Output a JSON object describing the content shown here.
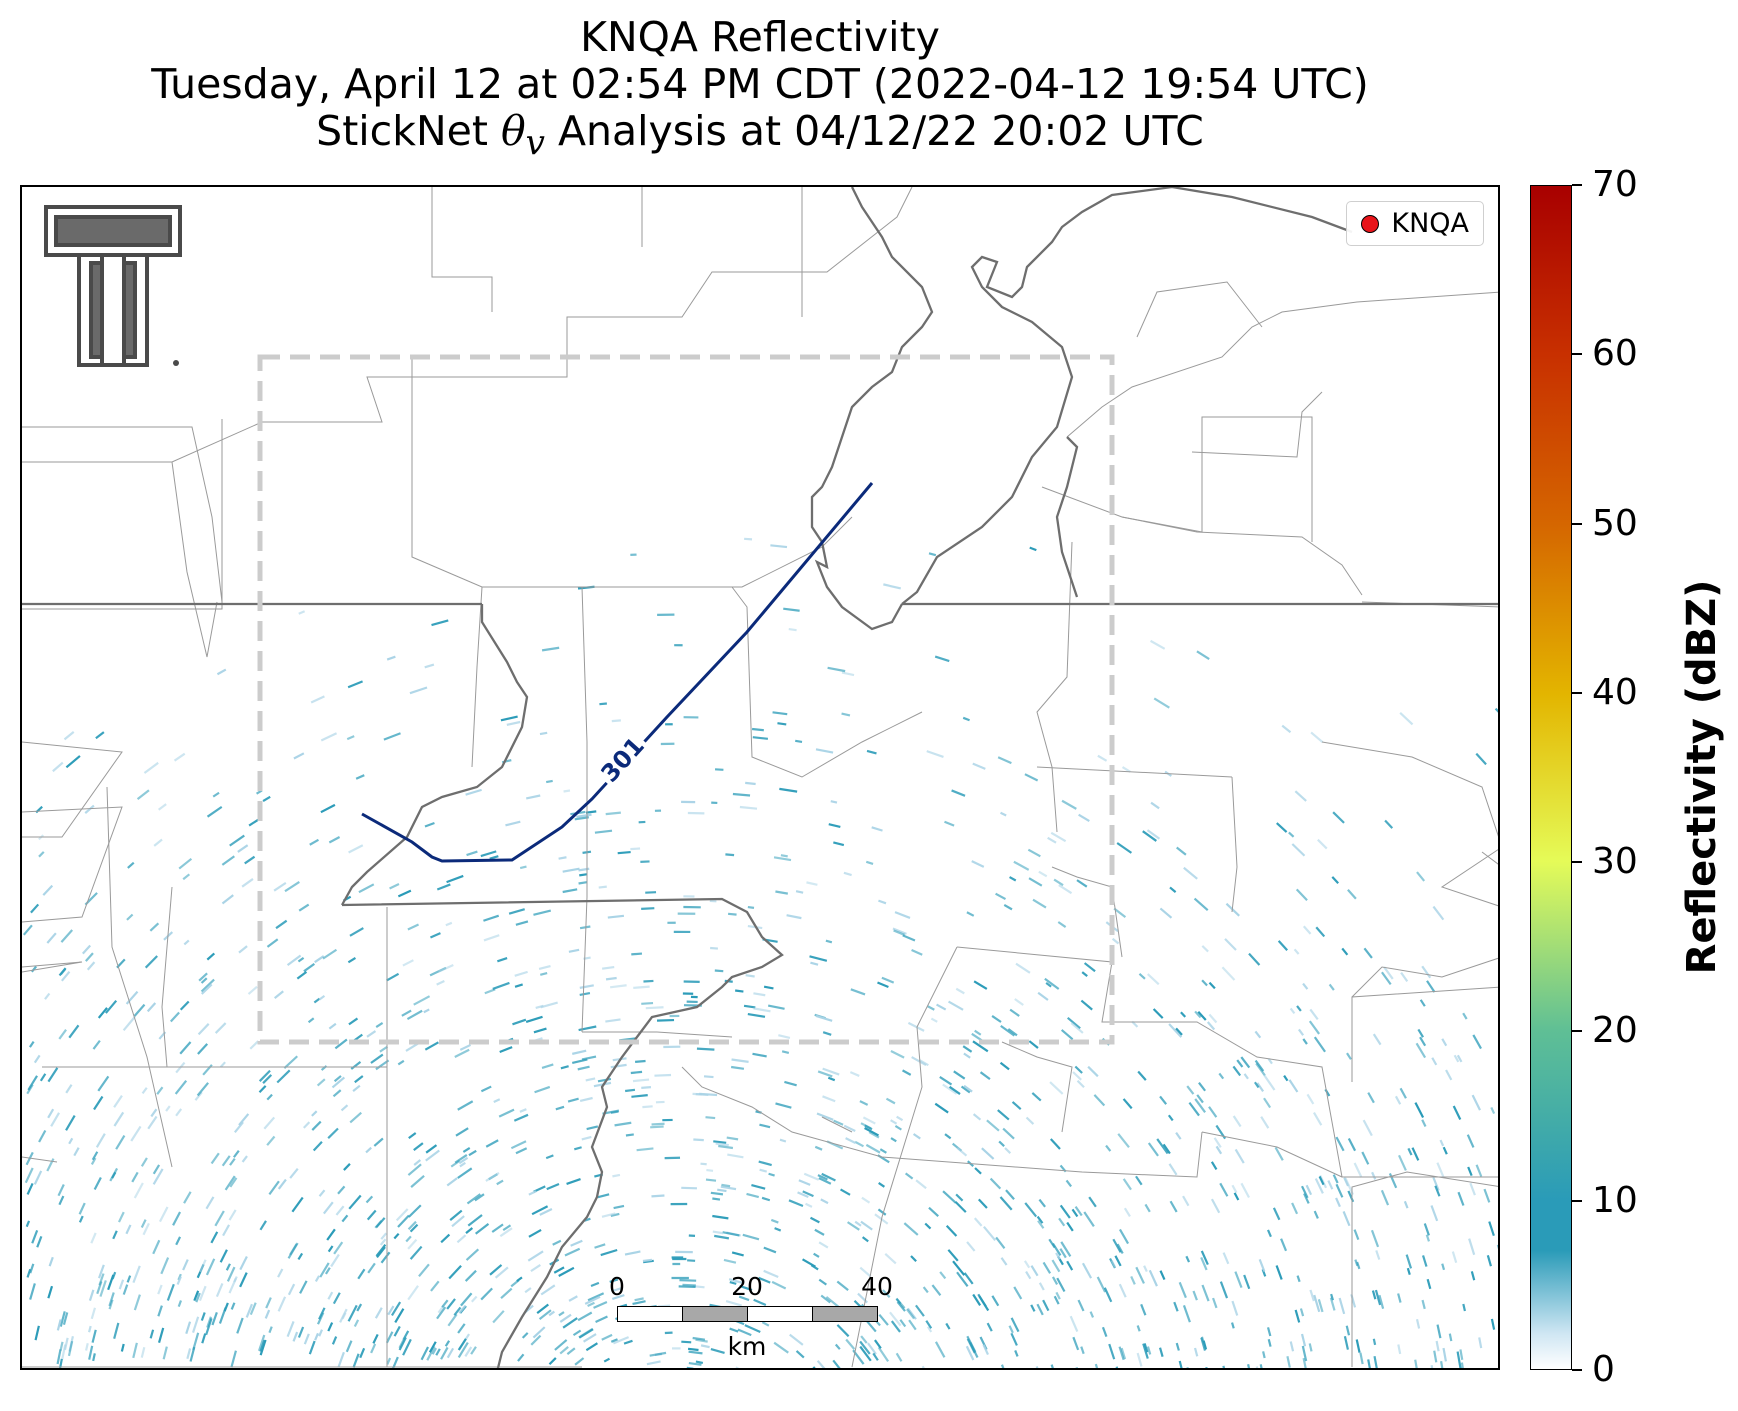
{
  "title": {
    "line1": "KNQA Reflectivity",
    "line2": "Tuesday, April 12 at 02:54 PM CDT (2022-04-12 19:54 UTC)",
    "line3_prefix": "StickNet ",
    "line3_symbol": "θ",
    "line3_subscript": "v",
    "line3_suffix": " Analysis at 04/12/22 20:02 UTC"
  },
  "legend": {
    "label": "KNQA",
    "marker_color": "#e8141a"
  },
  "contour": {
    "label": "301",
    "color": "#0b2a7a"
  },
  "scalebar": {
    "ticks": [
      "0",
      "20",
      "40"
    ],
    "unit": "km"
  },
  "colorbar": {
    "label": "Reflectivity (dBZ)",
    "ticks": [
      "0",
      "10",
      "20",
      "30",
      "40",
      "50",
      "60",
      "70"
    ],
    "range": [
      0,
      70
    ],
    "colors": [
      "#ffffff",
      "#2a9bb8",
      "#5fbf95",
      "#e5fb58",
      "#e3b500",
      "#d56600",
      "#c83000",
      "#a80000"
    ]
  },
  "colors": {
    "boundary_state": "#6e6e6e",
    "boundary_county": "#9a9a9a",
    "analysis_box": "#cccccc",
    "echo": "#2a9bb8"
  }
}
